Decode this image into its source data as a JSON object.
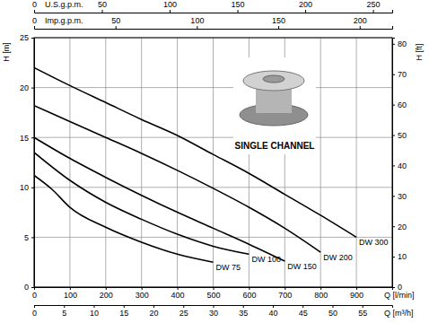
{
  "chart_data": {
    "type": "line",
    "x_label": "Q [l/min]",
    "xlim": [
      0,
      1000
    ],
    "xticks": [
      0,
      100,
      200,
      300,
      400,
      500,
      600,
      700,
      800,
      900
    ],
    "x2_label": "Q [m³/h]",
    "x2lim": [
      0,
      60
    ],
    "x2ticks": [
      0,
      5,
      10,
      15,
      20,
      25,
      30,
      35,
      40,
      45,
      50,
      55
    ],
    "x3_label": "U.S.g.p.m.",
    "x3lim": [
      0,
      264.17
    ],
    "x3ticks": [
      0,
      50,
      100,
      150,
      200,
      250
    ],
    "x4_label": "Imp.g.p.m.",
    "x4lim": [
      0,
      219.97
    ],
    "x4ticks": [
      0,
      50,
      100,
      150,
      200
    ],
    "y_label": "H [m]",
    "ylim": [
      0,
      25
    ],
    "yticks": [
      0,
      5,
      10,
      15,
      20,
      25
    ],
    "y2_label": "H [ft]",
    "y2lim": [
      0,
      82.02
    ],
    "y2ticks": [
      0,
      10,
      20,
      30,
      40,
      50,
      60,
      70,
      80
    ],
    "grid": true,
    "annotation": "SINGLE CHANNEL",
    "series": [
      {
        "name": "DW 75",
        "color": "#000000",
        "x": [
          0,
          50,
          100,
          200,
          300,
          400,
          500
        ],
        "values": [
          11.2,
          9.8,
          8.0,
          6.0,
          4.5,
          3.3,
          2.5
        ]
      },
      {
        "name": "DW 100",
        "color": "#000000",
        "x": [
          0,
          100,
          200,
          300,
          400,
          500,
          600
        ],
        "values": [
          13.5,
          10.7,
          8.5,
          6.8,
          5.3,
          4.1,
          3.3
        ]
      },
      {
        "name": "DW 150",
        "color": "#000000",
        "x": [
          0,
          100,
          200,
          300,
          400,
          500,
          600,
          700
        ],
        "values": [
          15.0,
          12.9,
          11.0,
          9.2,
          7.5,
          5.9,
          4.3,
          2.6
        ]
      },
      {
        "name": "DW 200",
        "color": "#000000",
        "x": [
          0,
          100,
          200,
          300,
          400,
          500,
          600,
          700,
          800
        ],
        "values": [
          18.2,
          16.6,
          15.0,
          13.4,
          11.7,
          9.9,
          8.0,
          5.9,
          3.5
        ]
      },
      {
        "name": "DW 300",
        "color": "#000000",
        "x": [
          0,
          100,
          200,
          300,
          400,
          500,
          600,
          700,
          800,
          900
        ],
        "values": [
          22.0,
          20.2,
          18.5,
          16.8,
          15.2,
          13.3,
          11.4,
          9.3,
          7.2,
          5.0
        ]
      }
    ]
  }
}
